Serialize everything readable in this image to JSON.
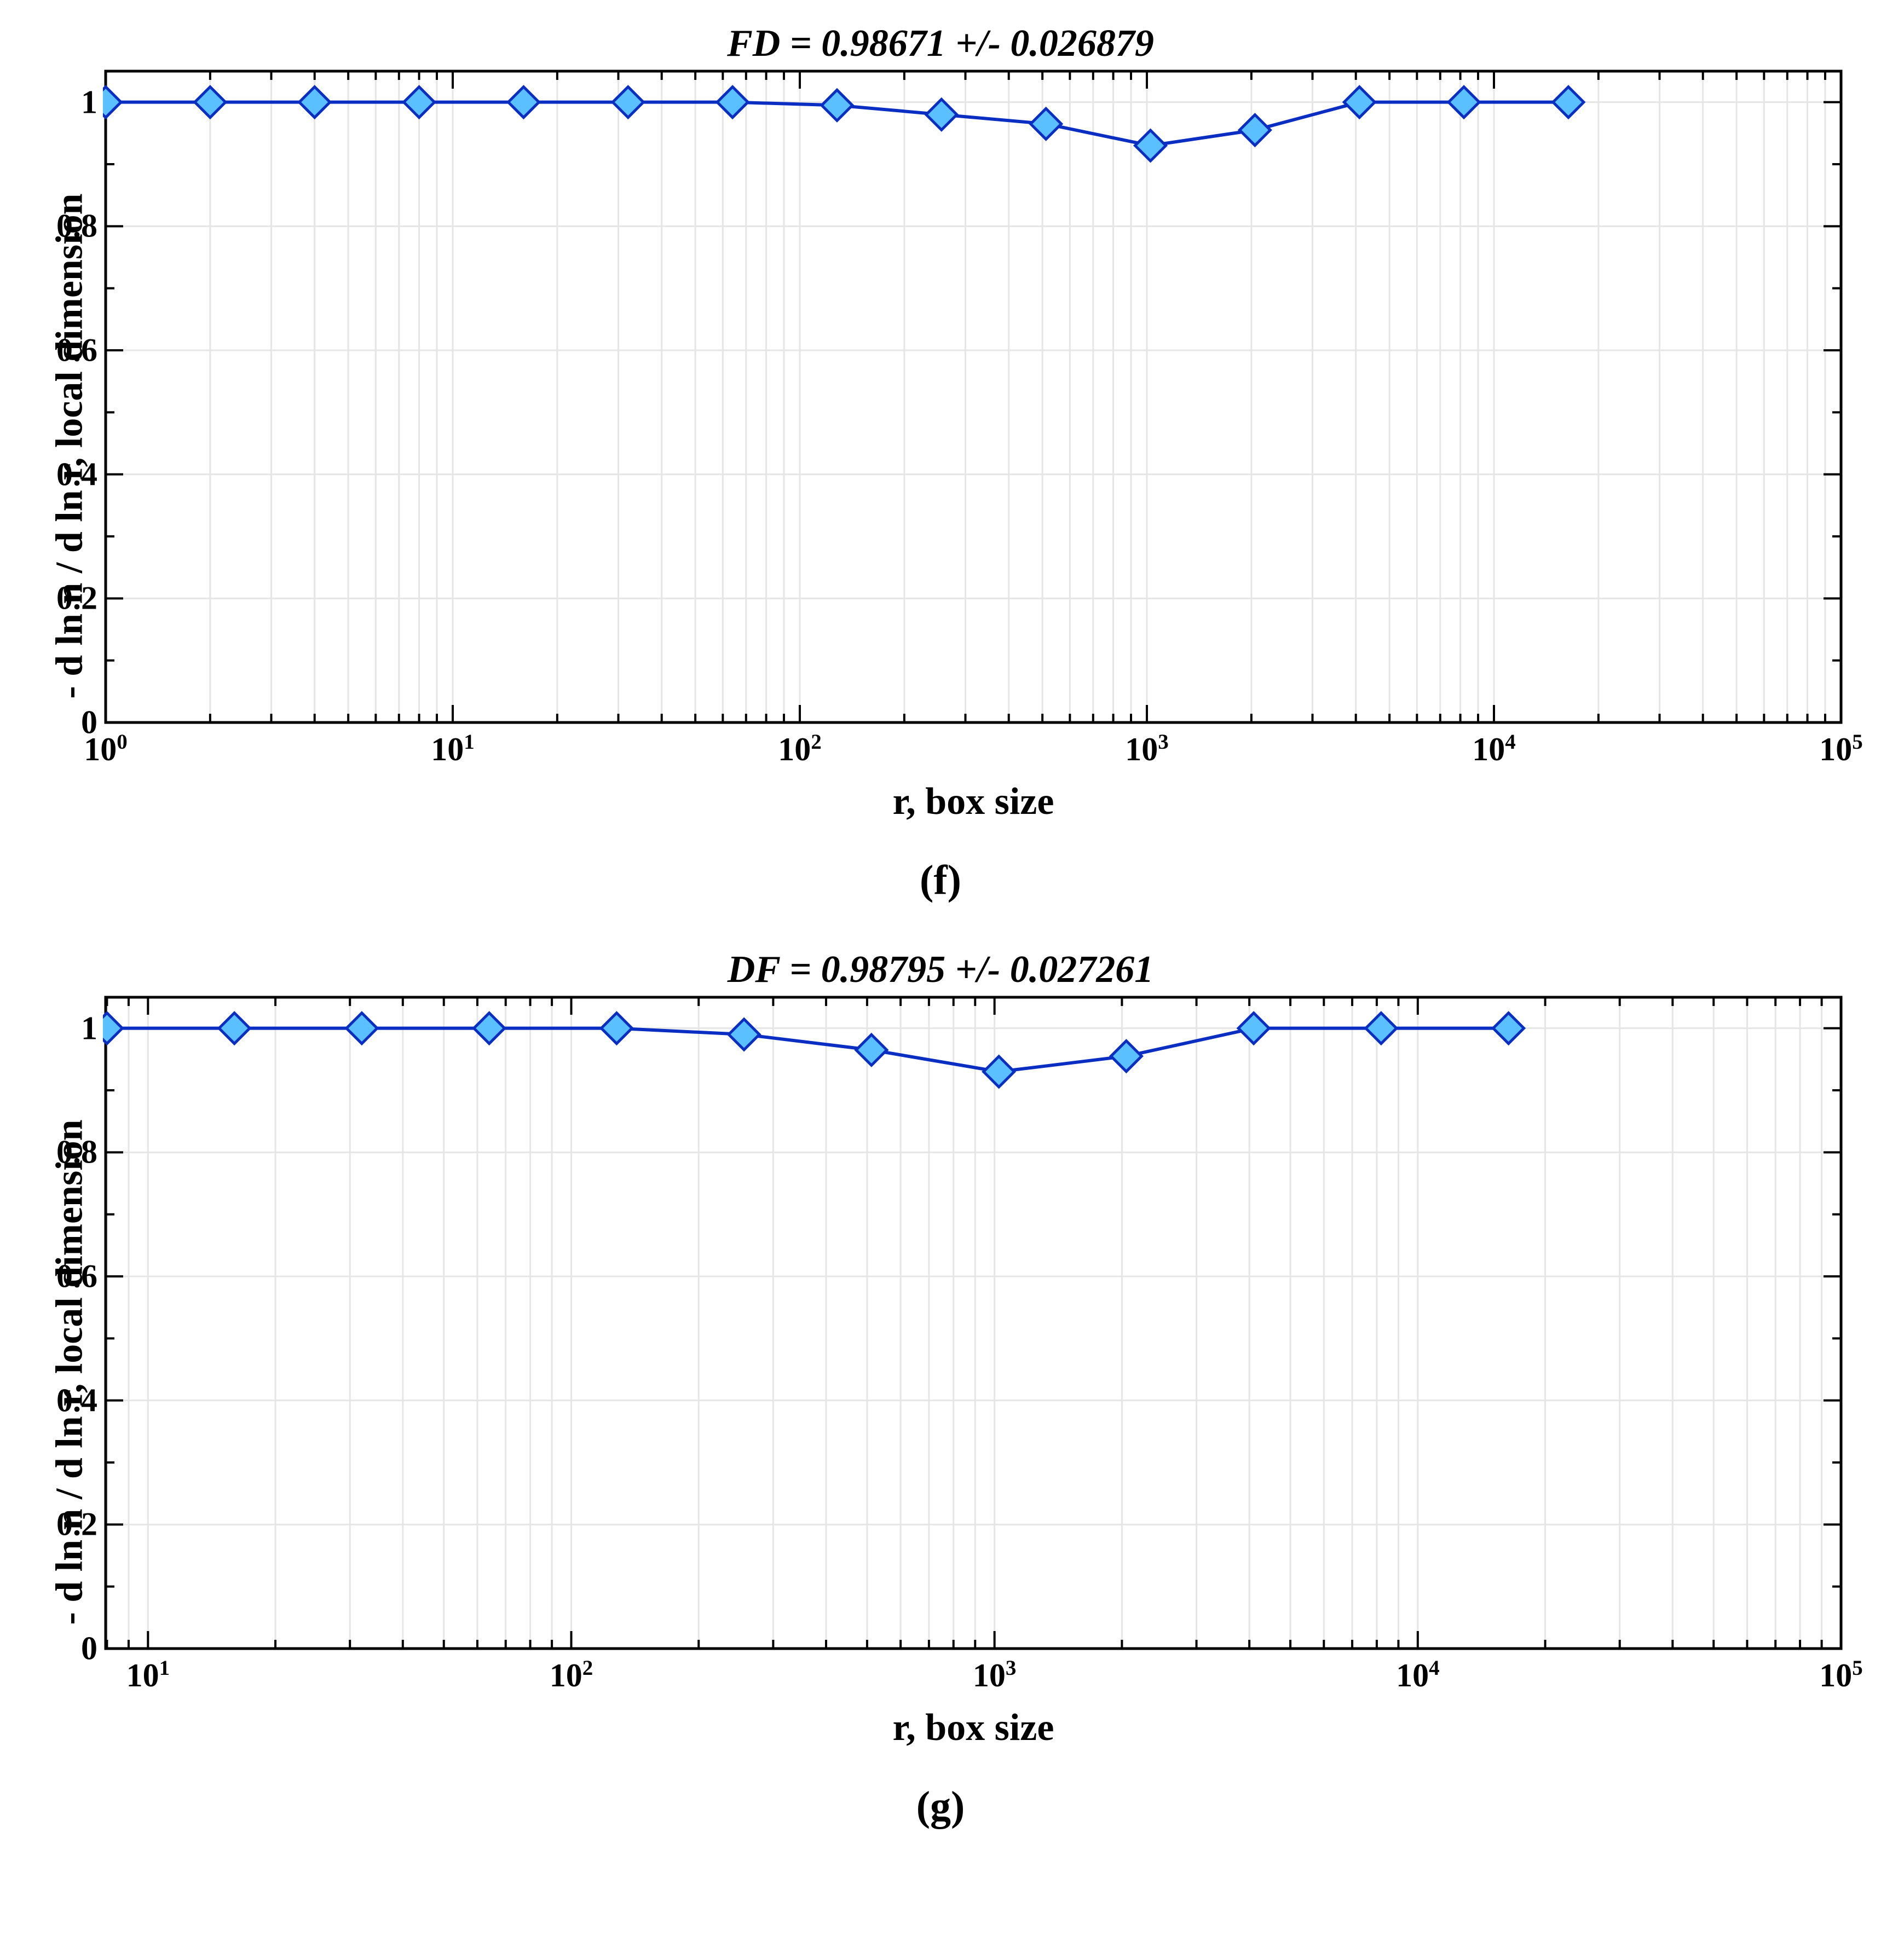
{
  "global": {
    "background_color": "#ffffff",
    "axis_color": "#000000",
    "grid_color": "#e6e6e6",
    "line_color": "#0b2ec2",
    "marker_edge_color": "#0b2ec2",
    "marker_fill_color": "#5bc0ff",
    "line_width": 6,
    "marker_size": 28,
    "marker_shape": "diamond",
    "tick_fontsize": 60,
    "label_fontsize": 70,
    "title_fontsize": 70,
    "font_weight": "bold",
    "font_style_title": "italic",
    "tick_length_major": 32,
    "tick_length_minor": 16
  },
  "chart_f": {
    "type": "line",
    "title": "FD = 0.98671 +/- 0.026879",
    "xlabel": "r, box size",
    "ylabel": "- d ln n / d ln r, local dimension",
    "subfig_label": "(f)",
    "xscale": "log",
    "xlim_log10": [
      0,
      5
    ],
    "ylim": [
      0,
      1.05
    ],
    "yticks": [
      0,
      0.2,
      0.4,
      0.6,
      0.8,
      1
    ],
    "ytick_labels": [
      "0",
      "0.2",
      "0.4",
      "0.6",
      "0.8",
      "1"
    ],
    "xtick_major_log10": [
      0,
      1,
      2,
      3,
      4,
      5
    ],
    "xtick_labels": [
      "10^0",
      "10^1",
      "10^2",
      "10^3",
      "10^4",
      "10^5"
    ],
    "data": {
      "x": [
        1,
        2,
        4,
        8,
        16,
        32,
        64,
        128,
        256,
        512,
        1024,
        2048,
        4096,
        8192,
        16384
      ],
      "y": [
        1.0,
        1.0,
        1.0,
        1.0,
        1.0,
        1.0,
        1.0,
        0.995,
        0.98,
        0.965,
        0.93,
        0.955,
        1.0,
        1.0,
        1.0
      ]
    }
  },
  "chart_g": {
    "type": "line",
    "title": "DF = 0.98795 +/- 0.027261",
    "xlabel": "r, box size",
    "ylabel": "- d ln n / d ln r, local dimension",
    "subfig_label": "(g)",
    "xscale": "log",
    "xlim_log10": [
      0.9,
      5
    ],
    "ylim": [
      0,
      1.05
    ],
    "yticks": [
      0,
      0.2,
      0.4,
      0.6,
      0.8,
      1
    ],
    "ytick_labels": [
      "0",
      "0.2",
      "0.4",
      "0.6",
      "0.8",
      "1"
    ],
    "xtick_major_log10": [
      1,
      2,
      3,
      4,
      5
    ],
    "xtick_labels": [
      "10^1",
      "10^2",
      "10^3",
      "10^4",
      "10^5"
    ],
    "data": {
      "x": [
        8,
        16,
        32,
        64,
        128,
        256,
        512,
        1024,
        2048,
        4096,
        8192,
        16384
      ],
      "y": [
        1.0,
        1.0,
        1.0,
        1.0,
        1.0,
        0.99,
        0.965,
        0.93,
        0.955,
        1.0,
        1.0,
        1.0
      ]
    }
  }
}
